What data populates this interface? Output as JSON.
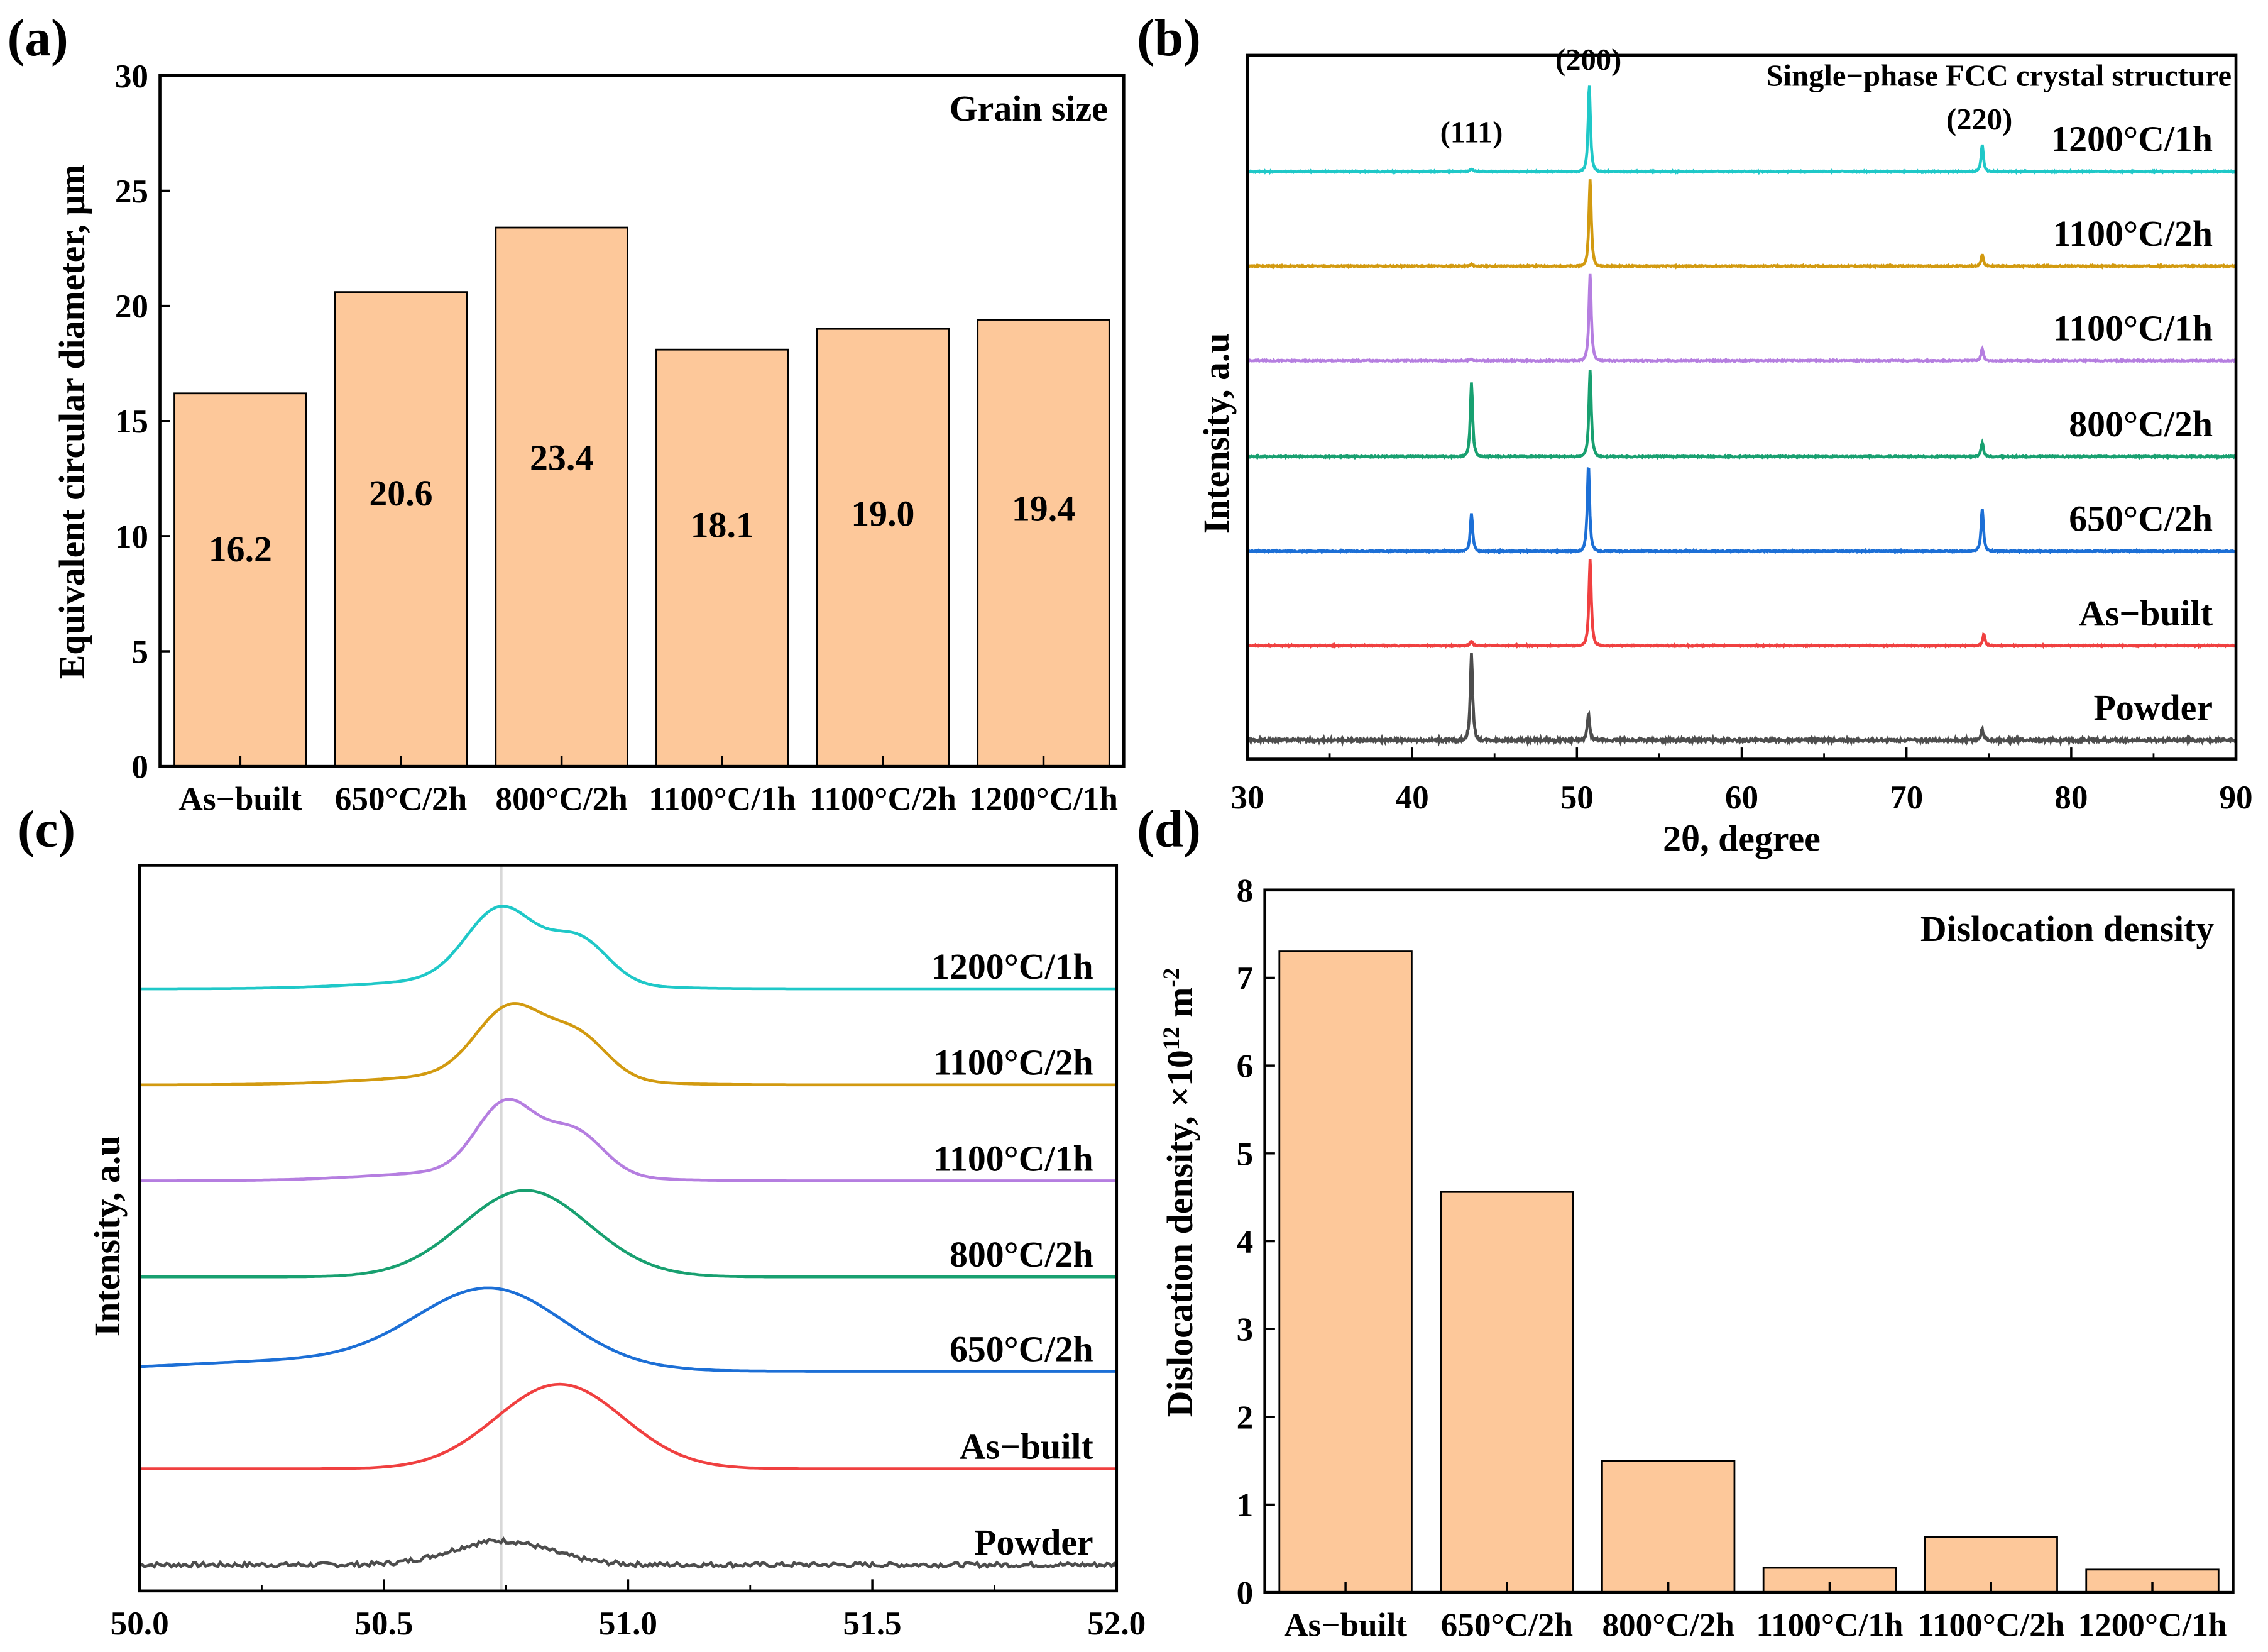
{
  "chart_data": [
    {
      "panel": "(a)",
      "type": "bar",
      "title": "Grain size",
      "categories": [
        "As−built",
        "650°C/2h",
        "800°C/2h",
        "1100°C/1h",
        "1100°C/2h",
        "1200°C/1h"
      ],
      "values": [
        16.2,
        20.6,
        23.4,
        18.1,
        19.0,
        19.4
      ],
      "value_labels": [
        "16.2",
        "20.6",
        "23.4",
        "18.1",
        "19.0",
        "19.4"
      ],
      "ylabel": "Equivalent circular diameter, μm",
      "ylim": [
        0,
        30
      ],
      "yticks": [
        "0",
        "5",
        "10",
        "15",
        "20",
        "25",
        "30"
      ],
      "bar_color": "#fdc89a"
    },
    {
      "panel": "(b)",
      "type": "line",
      "title": "Single−phase FCC crystal structure",
      "xlabel": "2θ, degree",
      "ylabel": "Intensity, a.u",
      "xlim": [
        30,
        90
      ],
      "xticks": [
        "30",
        "40",
        "50",
        "60",
        "70",
        "80",
        "90"
      ],
      "peak_labels": [
        {
          "text": "(111)",
          "x": 43.6
        },
        {
          "text": "(200)",
          "x": 50.7
        },
        {
          "text": "(220)",
          "x": 74.6
        }
      ],
      "series": [
        {
          "name": "Powder",
          "color": "#4d4d4d",
          "peaks": [
            [
              43.6,
              0.92
            ],
            [
              50.7,
              0.28
            ],
            [
              74.6,
              0.12
            ]
          ]
        },
        {
          "name": "As−built",
          "color": "#f04040",
          "peaks": [
            [
              43.6,
              0.05
            ],
            [
              50.8,
              0.92
            ],
            [
              74.7,
              0.12
            ]
          ]
        },
        {
          "name": "650°C/2h",
          "color": "#1c6fd6",
          "peaks": [
            [
              43.6,
              0.4
            ],
            [
              50.7,
              0.92
            ],
            [
              74.6,
              0.45
            ]
          ]
        },
        {
          "name": "800°C/2h",
          "color": "#18a070",
          "peaks": [
            [
              43.6,
              0.78
            ],
            [
              50.8,
              0.92
            ],
            [
              74.6,
              0.15
            ]
          ]
        },
        {
          "name": "1100°C/1h",
          "color": "#b57ee0",
          "peaks": [
            [
              43.6,
              0.02
            ],
            [
              50.8,
              0.92
            ],
            [
              74.6,
              0.13
            ]
          ]
        },
        {
          "name": "1100°C/2h",
          "color": "#d29a10",
          "peaks": [
            [
              43.6,
              0.02
            ],
            [
              50.8,
              0.92
            ],
            [
              74.6,
              0.12
            ]
          ]
        },
        {
          "name": "1200°C/1h",
          "color": "#1fc8c8",
          "peaks": [
            [
              43.6,
              0.03
            ],
            [
              50.75,
              0.92
            ],
            [
              74.6,
              0.28
            ]
          ]
        }
      ]
    },
    {
      "panel": "(c)",
      "type": "line",
      "ylabel": "Intensity, a.u",
      "xlim": [
        50.0,
        52.0
      ],
      "xticks": [
        "50.0",
        "50.5",
        "51.0",
        "51.5",
        "52.0"
      ],
      "reference_line_x": 50.74,
      "series": [
        {
          "name": "Powder",
          "color": "#4d4d4d",
          "components": [
            [
              50.74,
              0.1,
              0.25
            ]
          ]
        },
        {
          "name": "As−built",
          "color": "#f04040",
          "components": [
            [
              50.86,
              0.13,
              0.88
            ]
          ]
        },
        {
          "name": "650°C/2h",
          "color": "#1c6fd6",
          "components": [
            [
              50.72,
              0.15,
              0.8
            ],
            [
              50.4,
              0.3,
              0.12
            ]
          ]
        },
        {
          "name": "800°C/2h",
          "color": "#18a070",
          "components": [
            [
              50.79,
              0.13,
              0.9
            ]
          ]
        },
        {
          "name": "1100°C/1h",
          "color": "#b57ee0",
          "components": [
            [
              50.75,
              0.06,
              0.72
            ],
            [
              50.89,
              0.06,
              0.45
            ],
            [
              50.7,
              0.2,
              0.1
            ]
          ]
        },
        {
          "name": "1100°C/2h",
          "color": "#d29a10",
          "components": [
            [
              50.76,
              0.07,
              0.72
            ],
            [
              50.9,
              0.06,
              0.42
            ],
            [
              50.7,
              0.2,
              0.1
            ]
          ]
        },
        {
          "name": "1200°C/1h",
          "color": "#1fc8c8",
          "components": [
            [
              50.74,
              0.07,
              0.75
            ],
            [
              50.9,
              0.06,
              0.45
            ],
            [
              50.7,
              0.2,
              0.1
            ]
          ]
        }
      ]
    },
    {
      "panel": "(d)",
      "type": "bar",
      "title": "Dislocation density",
      "categories": [
        "As−built",
        "650°C/2h",
        "800°C/2h",
        "1100°C/1h",
        "1100°C/2h",
        "1200°C/1h"
      ],
      "values": [
        7.3,
        4.56,
        1.5,
        0.28,
        0.63,
        0.26
      ],
      "ylabel": "Dislocation density, ×10",
      "ylabel_sup": "12",
      "ylabel_unit": " m",
      "ylabel_unit_sup": "-2",
      "ylim": [
        0,
        8
      ],
      "yticks": [
        "0",
        "1",
        "2",
        "3",
        "4",
        "5",
        "6",
        "7",
        "8"
      ],
      "bar_color": "#fdc89a"
    }
  ]
}
